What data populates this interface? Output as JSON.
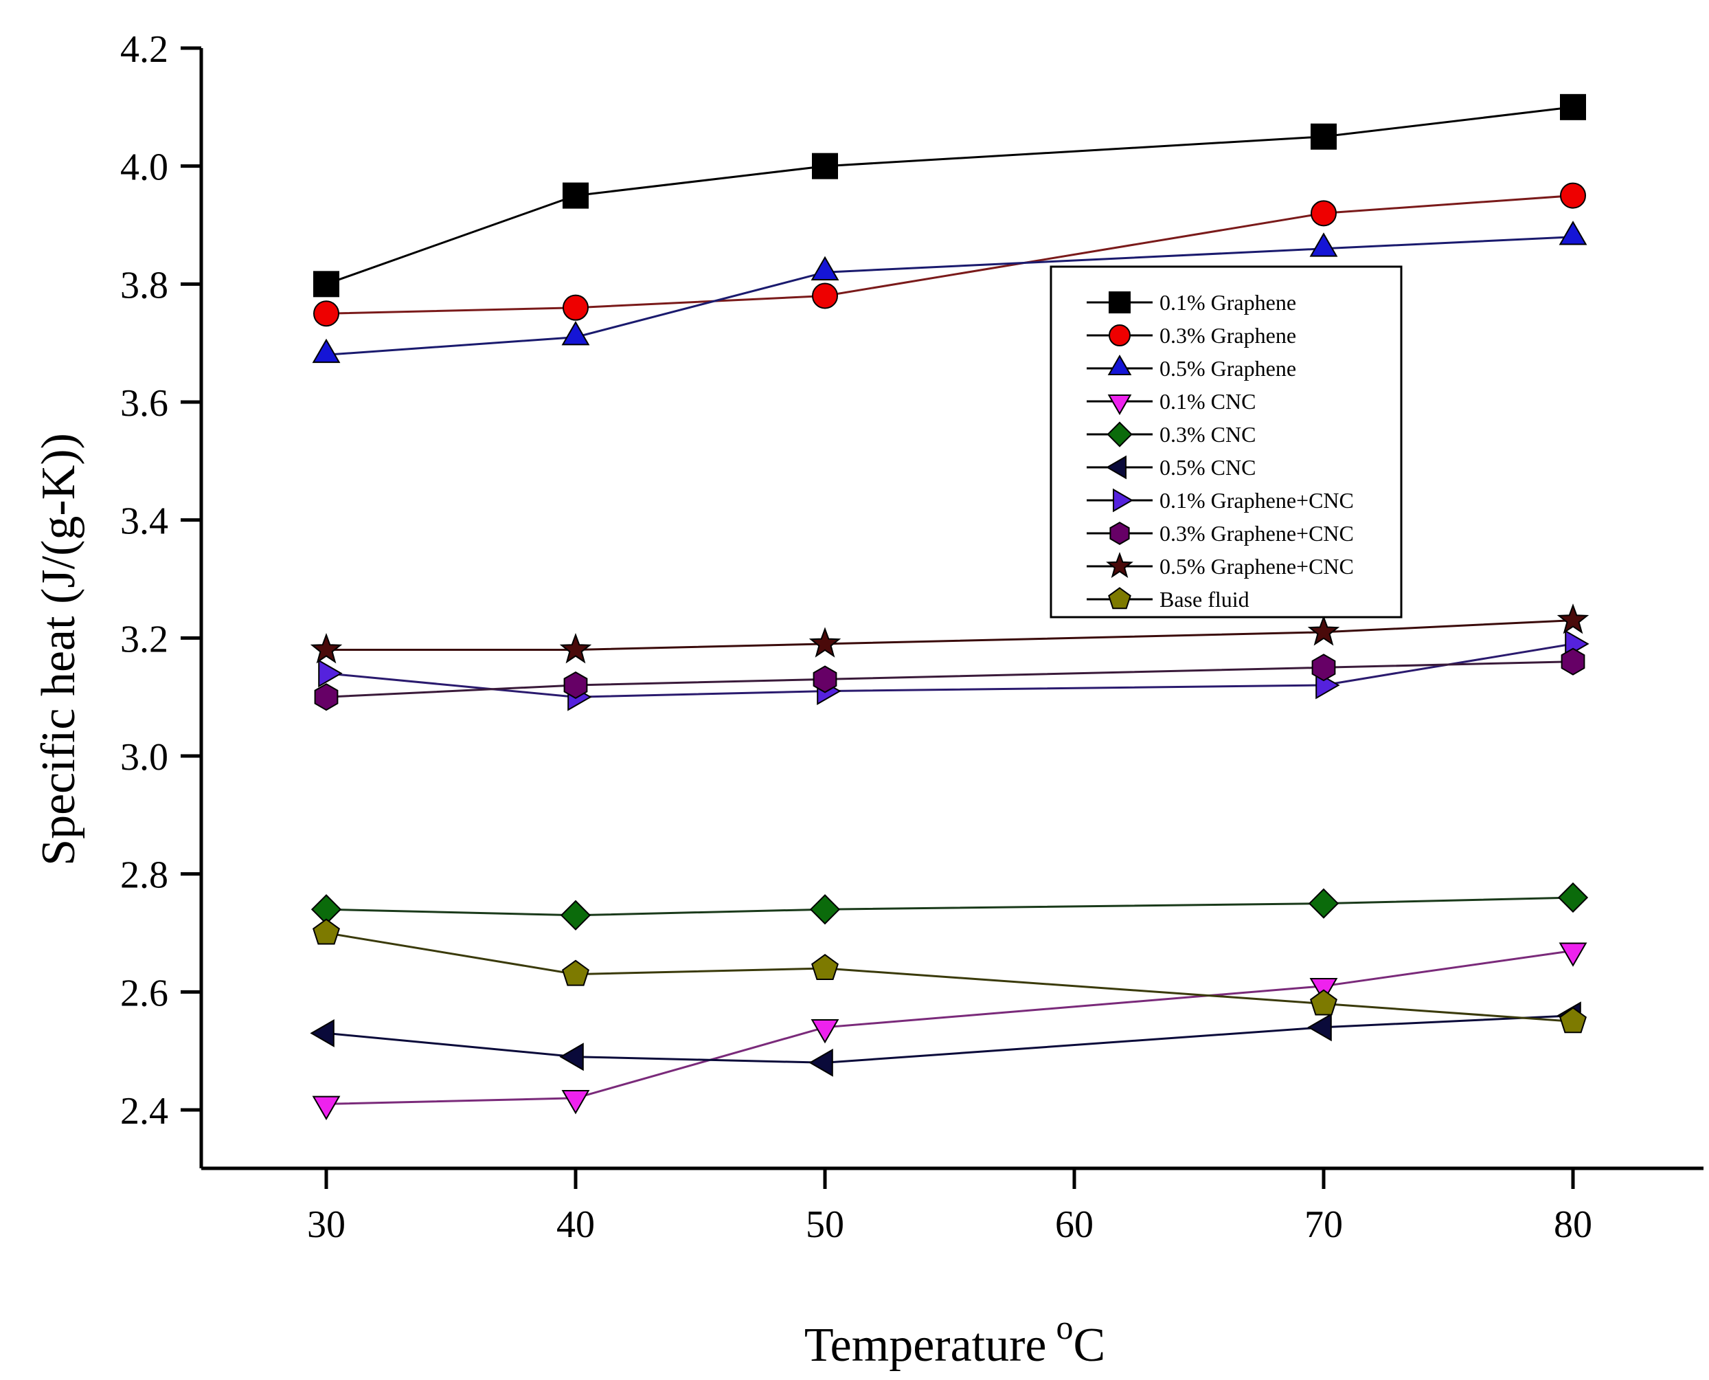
{
  "chart_data": {
    "type": "line",
    "title": "",
    "xlabel": "Temperature",
    "xlabel_superscript": "o",
    "xlabel_suffix": "C",
    "ylabel": "Specific heat (J/(g-K))",
    "x": [
      30,
      40,
      50,
      70,
      80
    ],
    "xlim": [
      25,
      85
    ],
    "ylim": [
      2.3,
      4.2
    ],
    "xticks": [
      30,
      40,
      50,
      60,
      70,
      80
    ],
    "yticks": [
      2.4,
      2.6,
      2.8,
      3.0,
      3.2,
      3.4,
      3.6,
      3.8,
      4.0,
      4.2
    ],
    "ytick_labels": [
      "2.4",
      "2.6",
      "2.8",
      "3.0",
      "3.2",
      "3.4",
      "3.6",
      "3.8",
      "4.0",
      "4.2"
    ],
    "legend_position": "right",
    "series": [
      {
        "name": "0.1% Graphene",
        "marker": "square",
        "color": "#000000",
        "line_color": "#000000",
        "values": [
          3.8,
          3.95,
          4.0,
          4.05,
          4.1
        ]
      },
      {
        "name": "0.3% Graphene",
        "marker": "circle",
        "color": "#ee0000",
        "line_color": "#7a1a1a",
        "values": [
          3.75,
          3.76,
          3.78,
          3.92,
          3.95
        ]
      },
      {
        "name": "0.5% Graphene",
        "marker": "triangle-up",
        "color": "#1515d6",
        "line_color": "#1a1a6e",
        "values": [
          3.68,
          3.71,
          3.82,
          3.86,
          3.88
        ]
      },
      {
        "name": "0.1% CNC",
        "marker": "triangle-down",
        "color": "#ee22ee",
        "line_color": "#7a2a7a",
        "values": [
          2.41,
          2.42,
          2.54,
          2.61,
          2.67
        ]
      },
      {
        "name": "0.3% CNC",
        "marker": "diamond",
        "color": "#0b6b0b",
        "line_color": "#1a3a1a",
        "values": [
          2.74,
          2.73,
          2.74,
          2.75,
          2.76
        ]
      },
      {
        "name": "0.5% CNC",
        "marker": "triangle-left",
        "color": "#0a0a3a",
        "line_color": "#0a0a3a",
        "values": [
          2.53,
          2.49,
          2.48,
          2.54,
          2.56
        ]
      },
      {
        "name": "0.1% Graphene+CNC",
        "marker": "triangle-right",
        "color": "#5522dd",
        "line_color": "#2a1a6e",
        "values": [
          3.14,
          3.1,
          3.11,
          3.12,
          3.19
        ]
      },
      {
        "name": "0.3% Graphene+CNC",
        "marker": "hexagon",
        "color": "#660066",
        "line_color": "#3a1a3a",
        "values": [
          3.1,
          3.12,
          3.13,
          3.15,
          3.16
        ]
      },
      {
        "name": "0.5% Graphene+CNC",
        "marker": "star",
        "color": "#4a0a0a",
        "line_color": "#3a0a0a",
        "values": [
          3.18,
          3.18,
          3.19,
          3.21,
          3.23
        ]
      },
      {
        "name": "Base fluid",
        "marker": "pentagon",
        "color": "#7d7a00",
        "line_color": "#3a3a0a",
        "values": [
          2.7,
          2.63,
          2.64,
          2.58,
          2.55
        ]
      }
    ]
  }
}
